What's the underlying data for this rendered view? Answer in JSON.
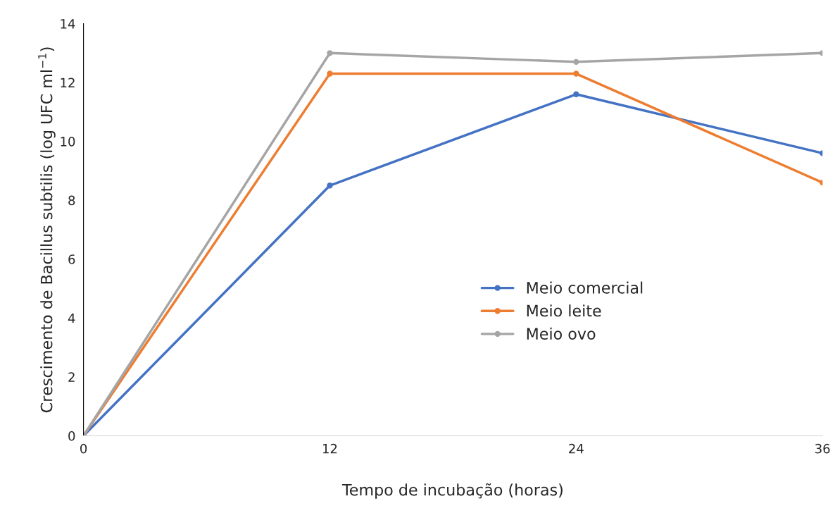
{
  "chart_data": {
    "type": "line",
    "xlabel": "Tempo de incubação (horas)",
    "ylabel": "Crescimento de Bacillus subtilis (log UFC ml$^{−1}$)",
    "x": [
      0,
      12,
      24,
      36
    ],
    "xlim": [
      0,
      36
    ],
    "xticks": [
      0,
      12,
      24,
      36
    ],
    "ylim": [
      0,
      14
    ],
    "yticks": [
      0,
      2,
      4,
      6,
      8,
      10,
      12,
      14
    ],
    "series": [
      {
        "name": "Meio comercial",
        "color": "#4472c4",
        "values": [
          0,
          8.5,
          11.6,
          9.6
        ]
      },
      {
        "name": "Meio leite",
        "color": "#ed7d31",
        "values": [
          0,
          12.3,
          12.3,
          8.6
        ]
      },
      {
        "name": "Meio ovo",
        "color": "#a5a5a5",
        "values": [
          0,
          13.0,
          12.7,
          13.0
        ]
      }
    ],
    "marker": "circle",
    "line_style": "solid",
    "grid": false,
    "legend": "right"
  }
}
